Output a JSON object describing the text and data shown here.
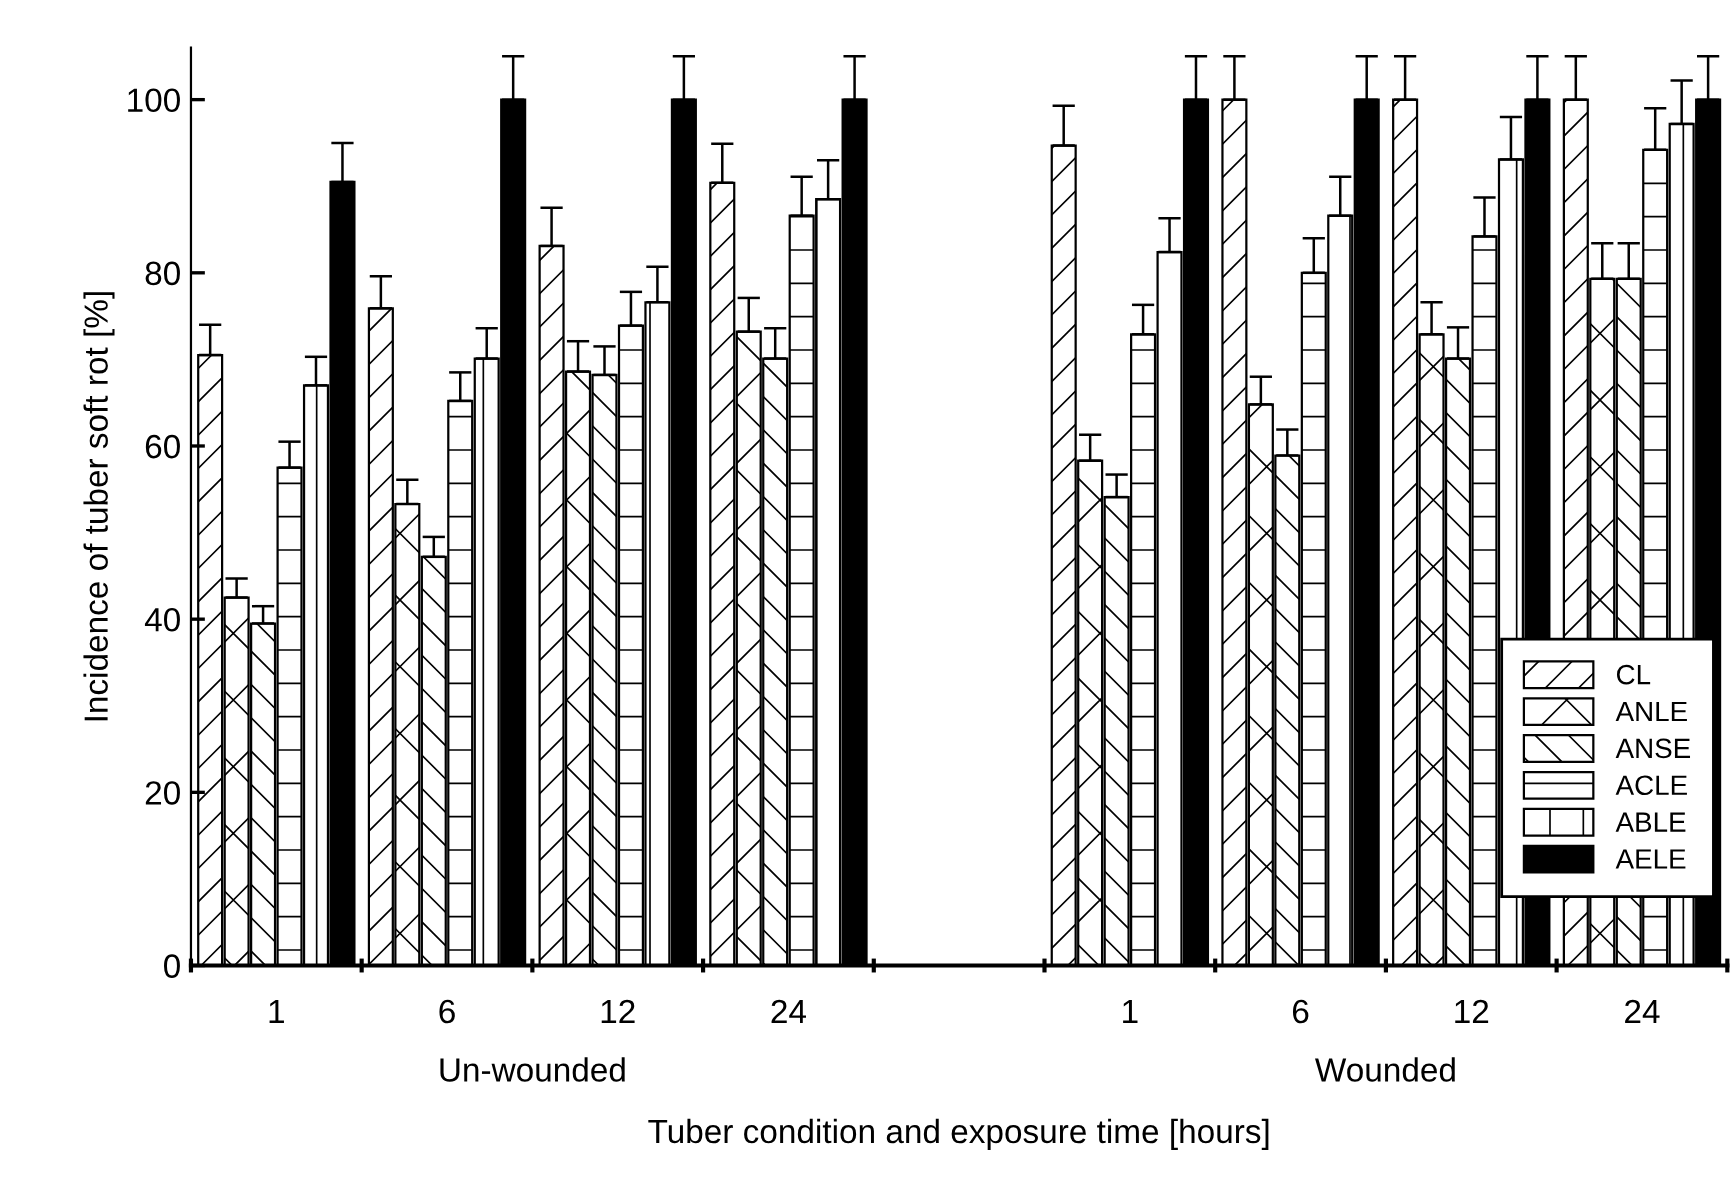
{
  "chart_data": {
    "type": "bar",
    "xlabel": "Tuber condition and exposure time [hours]",
    "ylabel": "Incidence of tuber soft rot [%]",
    "categories": [
      "1",
      "6",
      "12",
      "24",
      null,
      "1",
      "6",
      "12",
      "24"
    ],
    "ylim": [
      0,
      106
    ],
    "yticks": [
      0,
      20,
      40,
      60,
      80,
      100
    ],
    "grid": false,
    "legend": "bottom right",
    "annotations": [
      "Un-wounded",
      "Wounded"
    ],
    "series": [
      {
        "name": "CL",
        "color": "#ffffff",
        "values": [
          70.5,
          75.9,
          83.1,
          90.4,
          null,
          94.7,
          100,
          100,
          100
        ],
        "errors": [
          3.5,
          3.7,
          4.4,
          4.5,
          null,
          4.6,
          5,
          5,
          5
        ]
      },
      {
        "name": "ANLE",
        "color": "#ffffff",
        "values": [
          42.5,
          53.3,
          68.6,
          73.2,
          null,
          58.3,
          64.8,
          72.9,
          79.3
        ],
        "errors": [
          2.2,
          2.8,
          3.5,
          3.9,
          null,
          3,
          3.2,
          3.7,
          4.1
        ]
      },
      {
        "name": "ANSE",
        "color": "#ffffff",
        "values": [
          39.5,
          47.2,
          68.2,
          70.1,
          null,
          54.1,
          58.9,
          70.1,
          79.3
        ],
        "errors": [
          2,
          2.3,
          3.3,
          3.5,
          null,
          2.6,
          3,
          3.6,
          4.1
        ]
      },
      {
        "name": "ACLE",
        "color": "#ffffff",
        "values": [
          57.5,
          65.2,
          73.9,
          86.6,
          null,
          72.9,
          80,
          84.2,
          94.2
        ],
        "errors": [
          3,
          3.3,
          3.9,
          4.5,
          null,
          3.4,
          4,
          4.5,
          4.8
        ]
      },
      {
        "name": "ABLE",
        "color": "#ffffff",
        "values": [
          67,
          70.1,
          76.6,
          88.5,
          null,
          82.4,
          86.6,
          93.1,
          97.2
        ],
        "errors": [
          3.3,
          3.5,
          4.1,
          4.5,
          null,
          3.9,
          4.5,
          4.9,
          5
        ]
      },
      {
        "name": "AELE",
        "color": "#000000",
        "values": [
          90.5,
          100,
          100,
          100,
          null,
          100,
          100,
          100,
          100
        ],
        "errors": [
          4.5,
          5,
          5,
          5,
          null,
          5,
          5,
          5,
          5
        ]
      }
    ]
  }
}
